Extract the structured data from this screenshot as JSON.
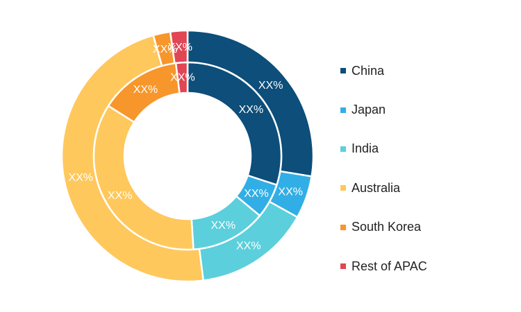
{
  "chart_data": {
    "type": "pie",
    "style": "nested-donut",
    "categories": [
      "China",
      "Japan",
      "India",
      "Australia",
      "South Korea",
      "Rest of APAC"
    ],
    "colors": [
      "#0d4e7a",
      "#32aee6",
      "#5ccfdc",
      "#ffc85c",
      "#f7962a",
      "#e04654"
    ],
    "series": [
      {
        "ring": "outer",
        "values": [
          27.6,
          5.5,
          14.9,
          47.6,
          2.2,
          2.2
        ]
      },
      {
        "ring": "inner",
        "values": [
          30.0,
          6.0,
          13.0,
          35.0,
          14.0,
          2.0
        ]
      }
    ],
    "data_labels": {
      "outer": [
        "XX%",
        "XX%",
        "XX%",
        "XX%",
        "XX%",
        "XX%"
      ],
      "inner": [
        "XX%",
        "XX%",
        "XX%",
        "XX%",
        "XX%",
        "XX%"
      ]
    },
    "legend_position": "right"
  }
}
